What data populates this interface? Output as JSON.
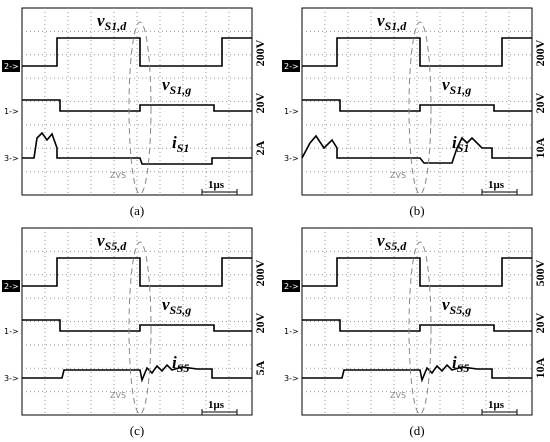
{
  "panels": [
    {
      "caption": "(a)",
      "channels": [
        {
          "marker": "2->",
          "signal": {
            "symbol": "v",
            "sub": "S1,d"
          },
          "scale": "200V"
        },
        {
          "marker": "1->",
          "signal": {
            "symbol": "v",
            "sub": "S1,g"
          },
          "scale": "20V"
        },
        {
          "marker": "3->",
          "signal": {
            "symbol": "i",
            "sub": "S1"
          },
          "scale": "2A"
        }
      ],
      "zvs": "ZVS",
      "time_scale": "1μs"
    },
    {
      "caption": "(b)",
      "channels": [
        {
          "marker": "2->",
          "signal": {
            "symbol": "v",
            "sub": "S1,d"
          },
          "scale": "200V"
        },
        {
          "marker": "1->",
          "signal": {
            "symbol": "v",
            "sub": "S1,g"
          },
          "scale": "20V"
        },
        {
          "marker": "3->",
          "signal": {
            "symbol": "i",
            "sub": "S1"
          },
          "scale": "10A"
        }
      ],
      "zvs": "ZVS",
      "time_scale": "1μs"
    },
    {
      "caption": "(c)",
      "channels": [
        {
          "marker": "2->",
          "signal": {
            "symbol": "v",
            "sub": "S5,d"
          },
          "scale": "200V"
        },
        {
          "marker": "1->",
          "signal": {
            "symbol": "v",
            "sub": "S5,g"
          },
          "scale": "20V"
        },
        {
          "marker": "3->",
          "signal": {
            "symbol": "i",
            "sub": "S5"
          },
          "scale": "5A"
        }
      ],
      "zvs": "ZVS",
      "time_scale": "1μs"
    },
    {
      "caption": "(d)",
      "channels": [
        {
          "marker": "2->",
          "signal": {
            "symbol": "v",
            "sub": "S5,d"
          },
          "scale": "500V"
        },
        {
          "marker": "1->",
          "signal": {
            "symbol": "v",
            "sub": "S5,g"
          },
          "scale": "20V"
        },
        {
          "marker": "3->",
          "signal": {
            "symbol": "i",
            "sub": "S5"
          },
          "scale": "10A"
        }
      ],
      "zvs": "ZVS",
      "time_scale": "1μs"
    }
  ]
}
